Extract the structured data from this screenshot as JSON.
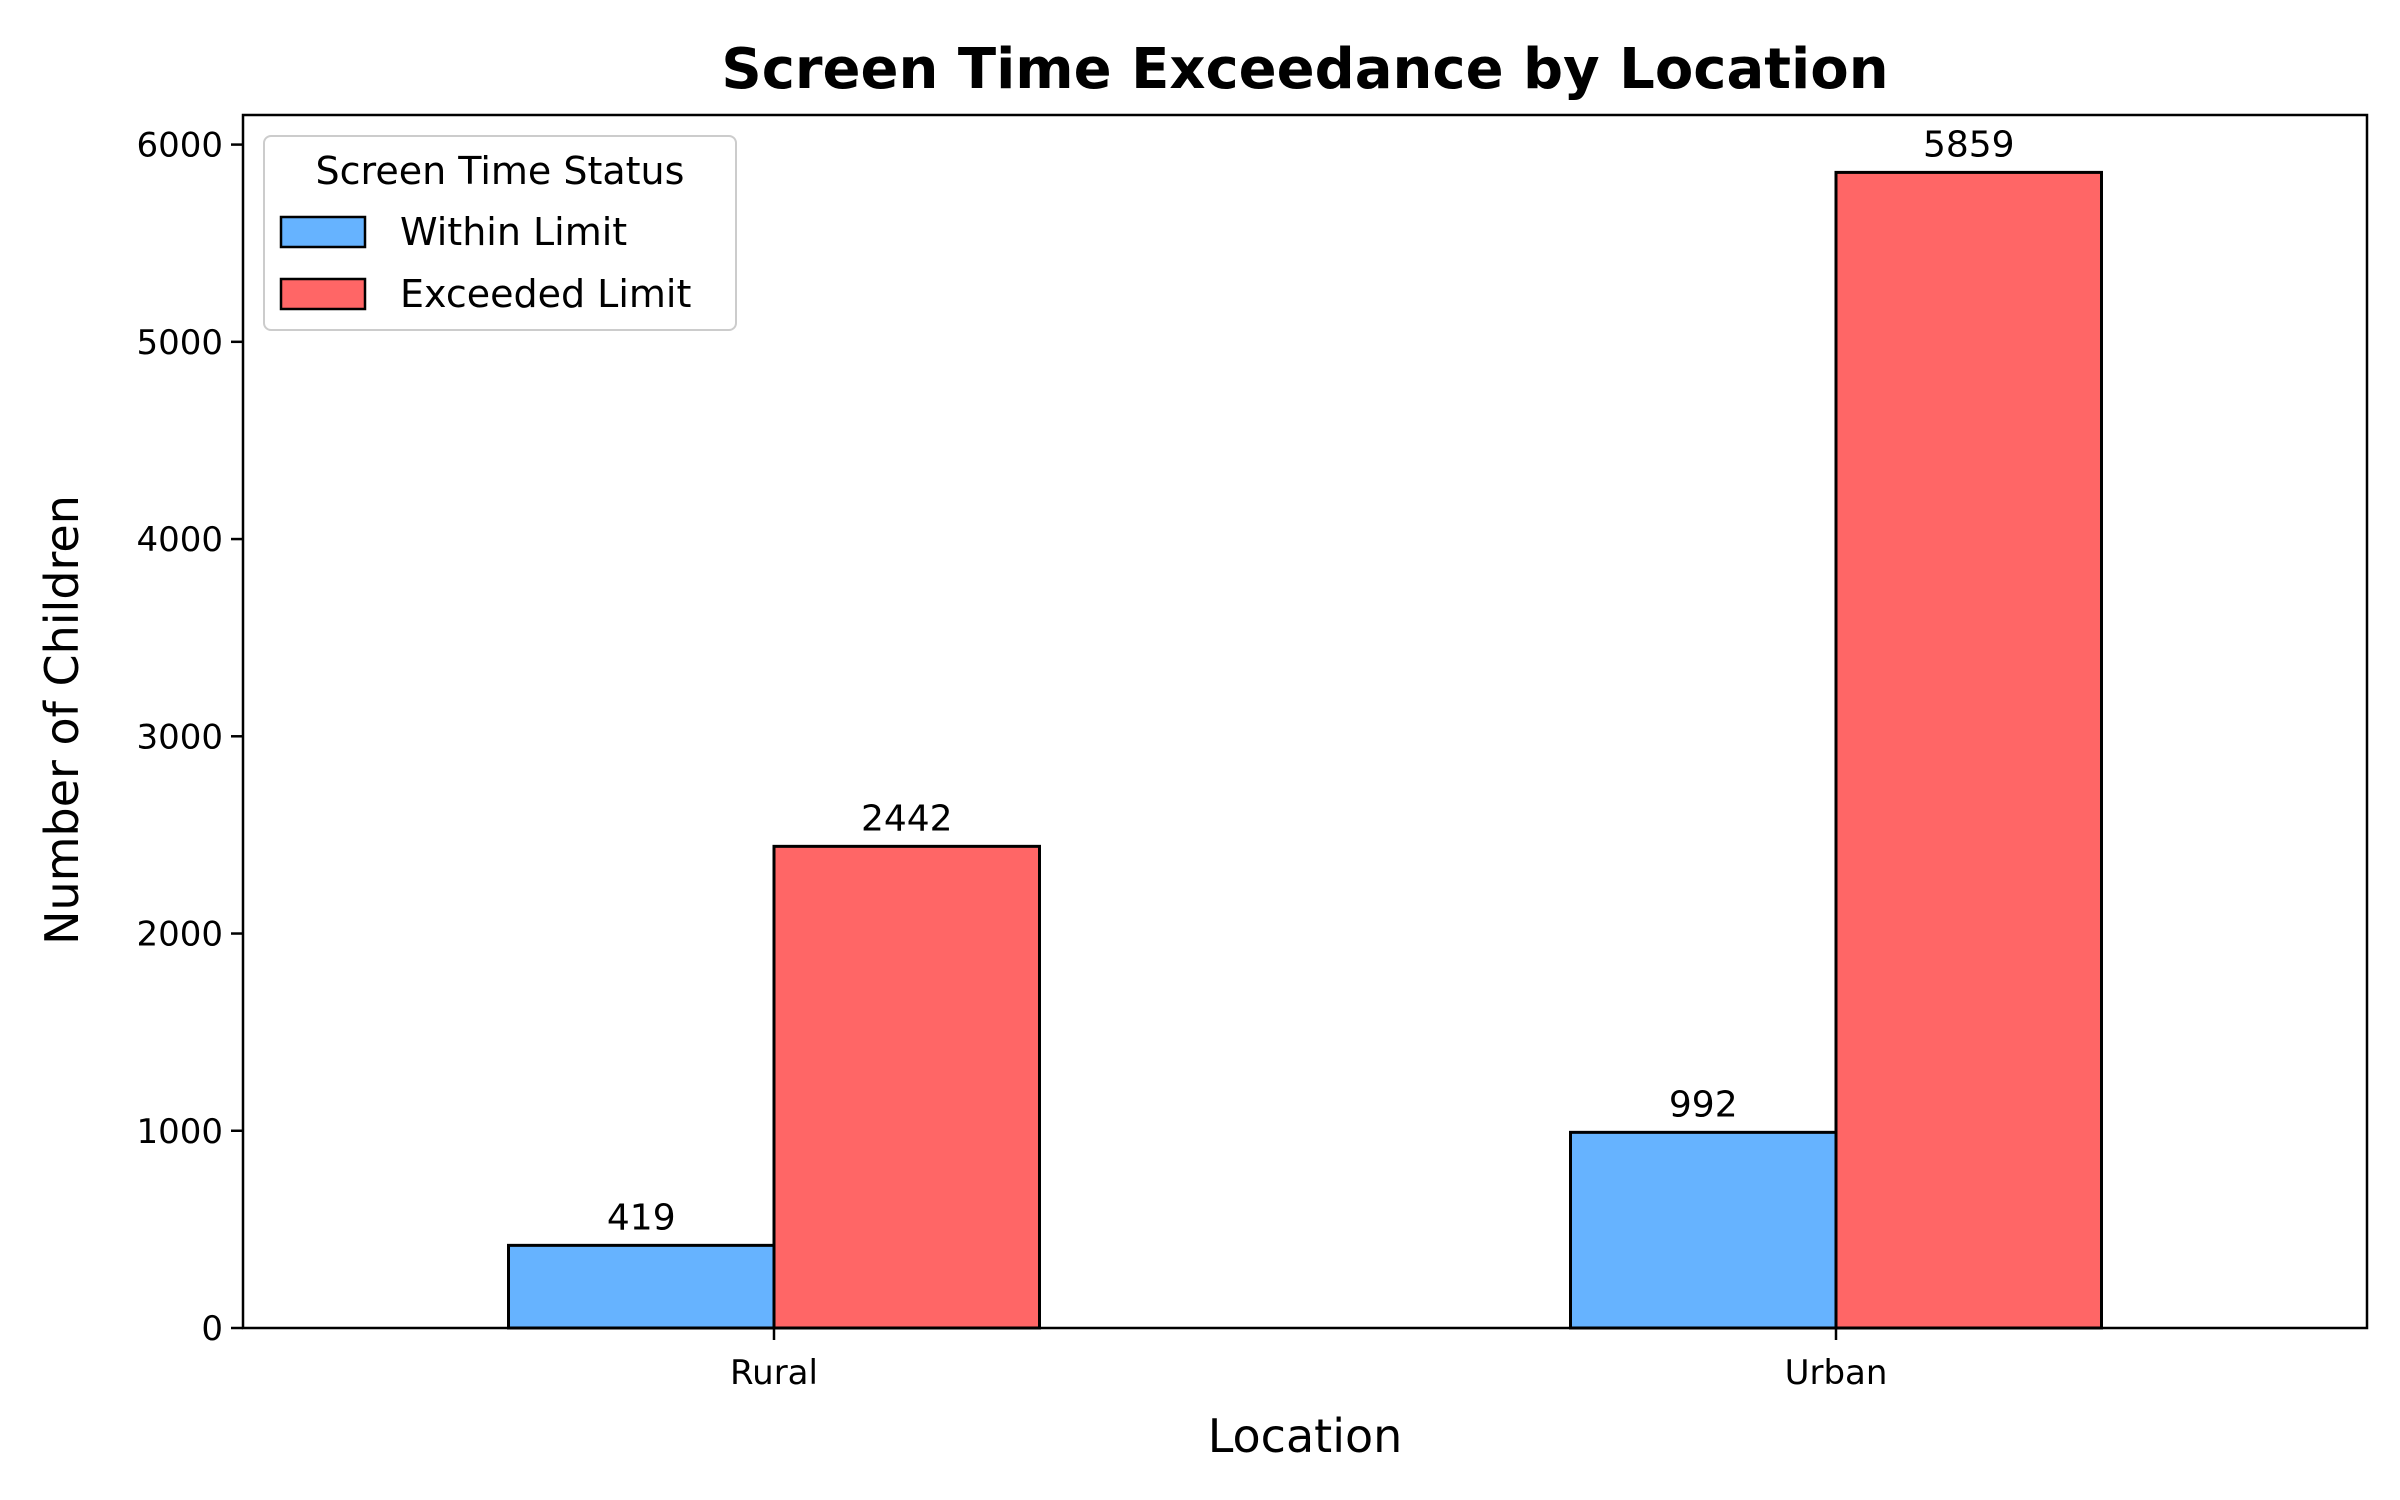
{
  "chart_data": {
    "type": "bar",
    "title": "Screen Time Exceedance by Location",
    "xlabel": "Location",
    "ylabel": "Number of Children",
    "categories": [
      "Rural",
      "Urban"
    ],
    "series": [
      {
        "name": "Within Limit",
        "values": [
          419,
          992
        ],
        "color": "#66b3ff"
      },
      {
        "name": "Exceeded Limit",
        "values": [
          2442,
          5859
        ],
        "color": "#ff6666"
      }
    ],
    "ylim": [
      0,
      6150
    ],
    "yticks": [
      0,
      1000,
      2000,
      3000,
      4000,
      5000,
      6000
    ],
    "grid": false,
    "legend": {
      "title": "Screen Time Status",
      "placement": "top-left"
    }
  }
}
